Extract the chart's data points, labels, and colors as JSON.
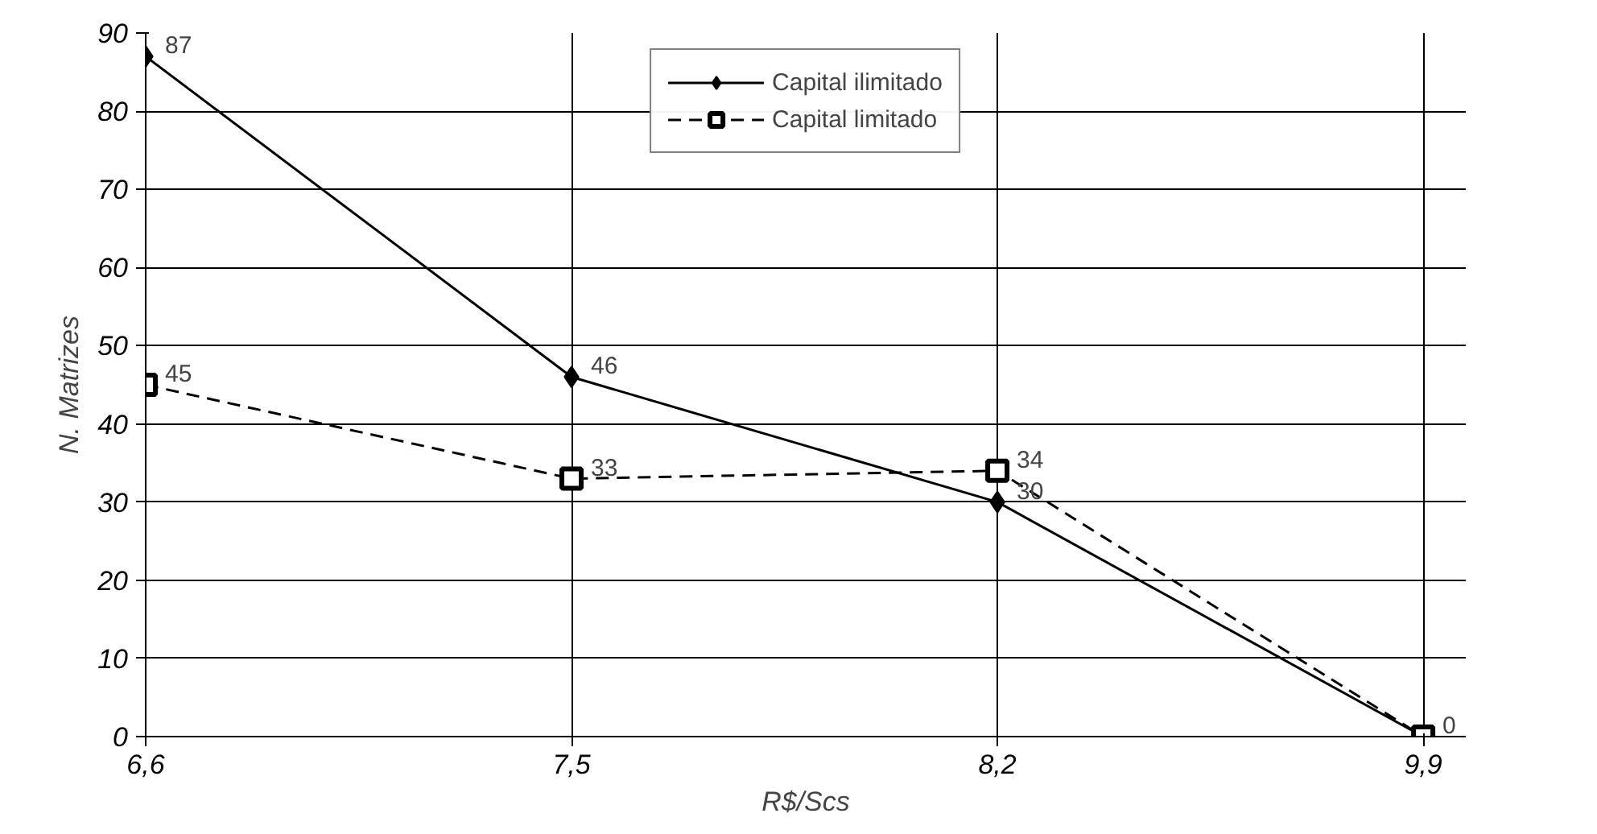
{
  "chart_data": {
    "type": "line",
    "xlabel": "R$/Scs",
    "ylabel": "N. Matrizes",
    "categories": [
      "6,6",
      "7,5",
      "8,2",
      "9,9"
    ],
    "ylim": [
      0,
      90
    ],
    "yticks": [
      0,
      10,
      20,
      30,
      40,
      50,
      60,
      70,
      80,
      90
    ],
    "grid": true,
    "legend": "top",
    "series": [
      {
        "name": "Capital ilimitado",
        "color": "#000000",
        "values": [
          87,
          46,
          30,
          0
        ],
        "marker": "diamond",
        "line_style": "solid",
        "value_labels": [
          "87",
          "46",
          "30",
          null
        ]
      },
      {
        "name": "Capital limitado",
        "color": "#000000",
        "values": [
          45,
          33,
          34,
          0
        ],
        "marker": "square",
        "line_style": "dashed",
        "value_labels": [
          "45",
          "33",
          "34",
          "0"
        ]
      }
    ]
  }
}
